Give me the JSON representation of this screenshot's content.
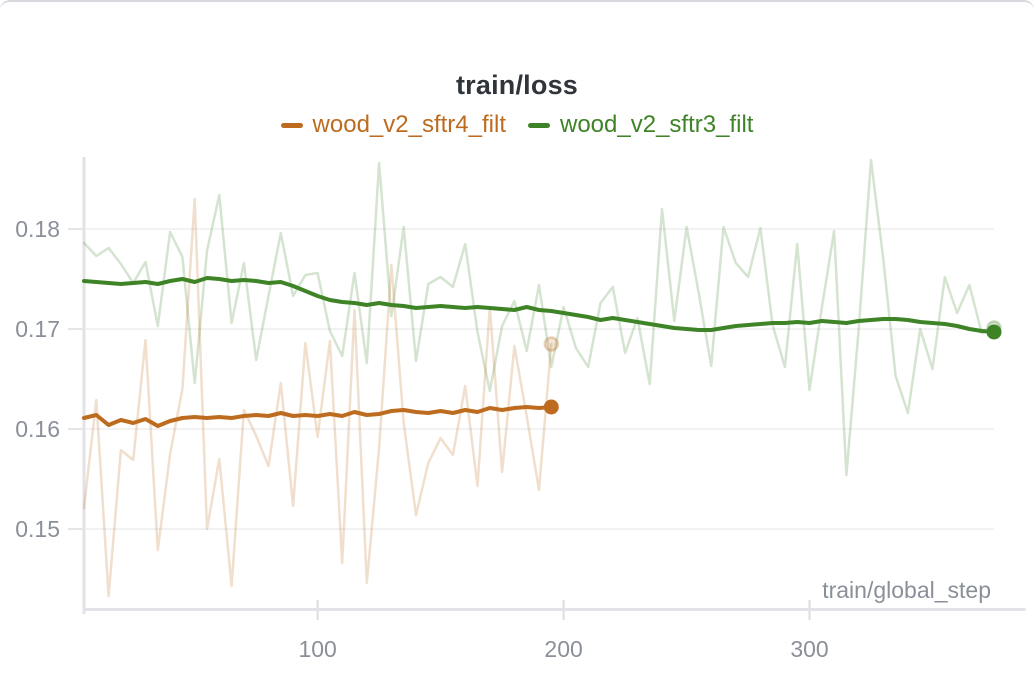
{
  "chart": {
    "title": "train/loss",
    "x_axis_label": "train/global_step",
    "legend": [
      {
        "label": "wood_v2_sftr4_filt",
        "color": "#bd6c1f"
      },
      {
        "label": "wood_v2_sftr3_filt",
        "color": "#3e8427"
      }
    ],
    "colors": {
      "title_text": "#30353c",
      "tick_text": "#8a9099",
      "gridline": "#ededee",
      "axis_line": "#e2e2e7",
      "orange_series": "#bd6c1f",
      "green_series": "#3e8427"
    }
  },
  "chart_data": {
    "type": "line",
    "title": "train/loss",
    "xlabel": "train/global_step",
    "ylabel": "",
    "xlim": [
      5,
      375
    ],
    "ylim": [
      0.1422,
      0.1872
    ],
    "x_ticks": [
      100,
      200,
      300
    ],
    "y_ticks": [
      0.15,
      0.16,
      0.17,
      0.18
    ],
    "grid": "horizontal-only",
    "legend_position": "top-center",
    "x_start": 5,
    "x_interval": 5,
    "series": [
      {
        "name": "wood_v2_sftr3_filt_raw",
        "run": "wood_v2_sftr3_filt",
        "role": "raw",
        "color": "#3e8427",
        "opacity": 0.22,
        "values": [
          0.1786,
          0.1773,
          0.1781,
          0.1765,
          0.1746,
          0.1767,
          0.1703,
          0.1797,
          0.1772,
          0.1646,
          0.1778,
          0.1834,
          0.1706,
          0.1766,
          0.1669,
          0.1733,
          0.1796,
          0.1733,
          0.1754,
          0.1756,
          0.1698,
          0.1673,
          0.1756,
          0.1666,
          0.1866,
          0.1713,
          0.1802,
          0.1668,
          0.1745,
          0.1752,
          0.1742,
          0.1785,
          0.1697,
          0.1638,
          0.1703,
          0.1728,
          0.1678,
          0.1744,
          0.1662,
          0.1722,
          0.1681,
          0.1662,
          0.1726,
          0.1742,
          0.1676,
          0.1711,
          0.1645,
          0.182,
          0.1708,
          0.1802,
          0.1735,
          0.1663,
          0.1802,
          0.1766,
          0.1752,
          0.1801,
          0.1704,
          0.1662,
          0.1785,
          0.1639,
          0.1721,
          0.1798,
          0.1554,
          0.17,
          0.1869,
          0.177,
          0.1653,
          0.1616,
          0.17,
          0.166,
          0.1752,
          0.1716,
          0.1744,
          0.1696,
          0.1701
        ]
      },
      {
        "name": "wood_v2_sftr4_filt_raw",
        "run": "wood_v2_sftr4_filt",
        "role": "raw",
        "color": "#bd6c1f",
        "opacity": 0.22,
        "values": [
          0.1521,
          0.1629,
          0.1433,
          0.1579,
          0.1569,
          0.1689,
          0.1479,
          0.1575,
          0.164,
          0.183,
          0.15,
          0.157,
          0.1443,
          0.1619,
          0.1593,
          0.1563,
          0.1646,
          0.1523,
          0.1686,
          0.1592,
          0.1688,
          0.1466,
          0.1719,
          0.1446,
          0.1581,
          0.1764,
          0.1606,
          0.1514,
          0.1566,
          0.1591,
          0.1574,
          0.1643,
          0.1543,
          0.1722,
          0.1557,
          0.1683,
          0.1613,
          0.1539,
          0.1685
        ]
      },
      {
        "name": "wood_v2_sftr3_filt",
        "run": "wood_v2_sftr3_filt",
        "role": "smoothed",
        "color": "#3e8427",
        "opacity": 1,
        "end_dot": true,
        "values": [
          0.1748,
          0.1747,
          0.1746,
          0.1745,
          0.1746,
          0.1747,
          0.1745,
          0.1748,
          0.175,
          0.1747,
          0.1751,
          0.175,
          0.1748,
          0.1749,
          0.1748,
          0.1746,
          0.1747,
          0.1743,
          0.1738,
          0.1733,
          0.1729,
          0.1727,
          0.1726,
          0.1724,
          0.1726,
          0.1724,
          0.1723,
          0.1721,
          0.1722,
          0.1723,
          0.1722,
          0.1721,
          0.1722,
          0.1721,
          0.172,
          0.1719,
          0.1722,
          0.1719,
          0.1718,
          0.1716,
          0.1714,
          0.1712,
          0.1709,
          0.1711,
          0.1709,
          0.1707,
          0.1705,
          0.1703,
          0.1701,
          0.17,
          0.1699,
          0.1699,
          0.1701,
          0.1703,
          0.1704,
          0.1705,
          0.1706,
          0.1706,
          0.1707,
          0.1706,
          0.1708,
          0.1707,
          0.1706,
          0.1708,
          0.1709,
          0.171,
          0.171,
          0.1709,
          0.1707,
          0.1706,
          0.1705,
          0.1703,
          0.17,
          0.1698,
          0.1697
        ]
      },
      {
        "name": "wood_v2_sftr4_filt",
        "run": "wood_v2_sftr4_filt",
        "role": "smoothed",
        "color": "#bd6c1f",
        "opacity": 1,
        "end_dot": true,
        "values": [
          0.1611,
          0.1614,
          0.1604,
          0.1609,
          0.1606,
          0.161,
          0.1603,
          0.1608,
          0.1611,
          0.1612,
          0.1611,
          0.1612,
          0.1611,
          0.1613,
          0.1614,
          0.1613,
          0.1616,
          0.1613,
          0.1614,
          0.1613,
          0.1615,
          0.1613,
          0.1617,
          0.1614,
          0.1615,
          0.1618,
          0.1619,
          0.1617,
          0.1616,
          0.1618,
          0.1616,
          0.1619,
          0.1617,
          0.1621,
          0.1619,
          0.1621,
          0.1622,
          0.1621,
          0.1622
        ]
      }
    ]
  }
}
